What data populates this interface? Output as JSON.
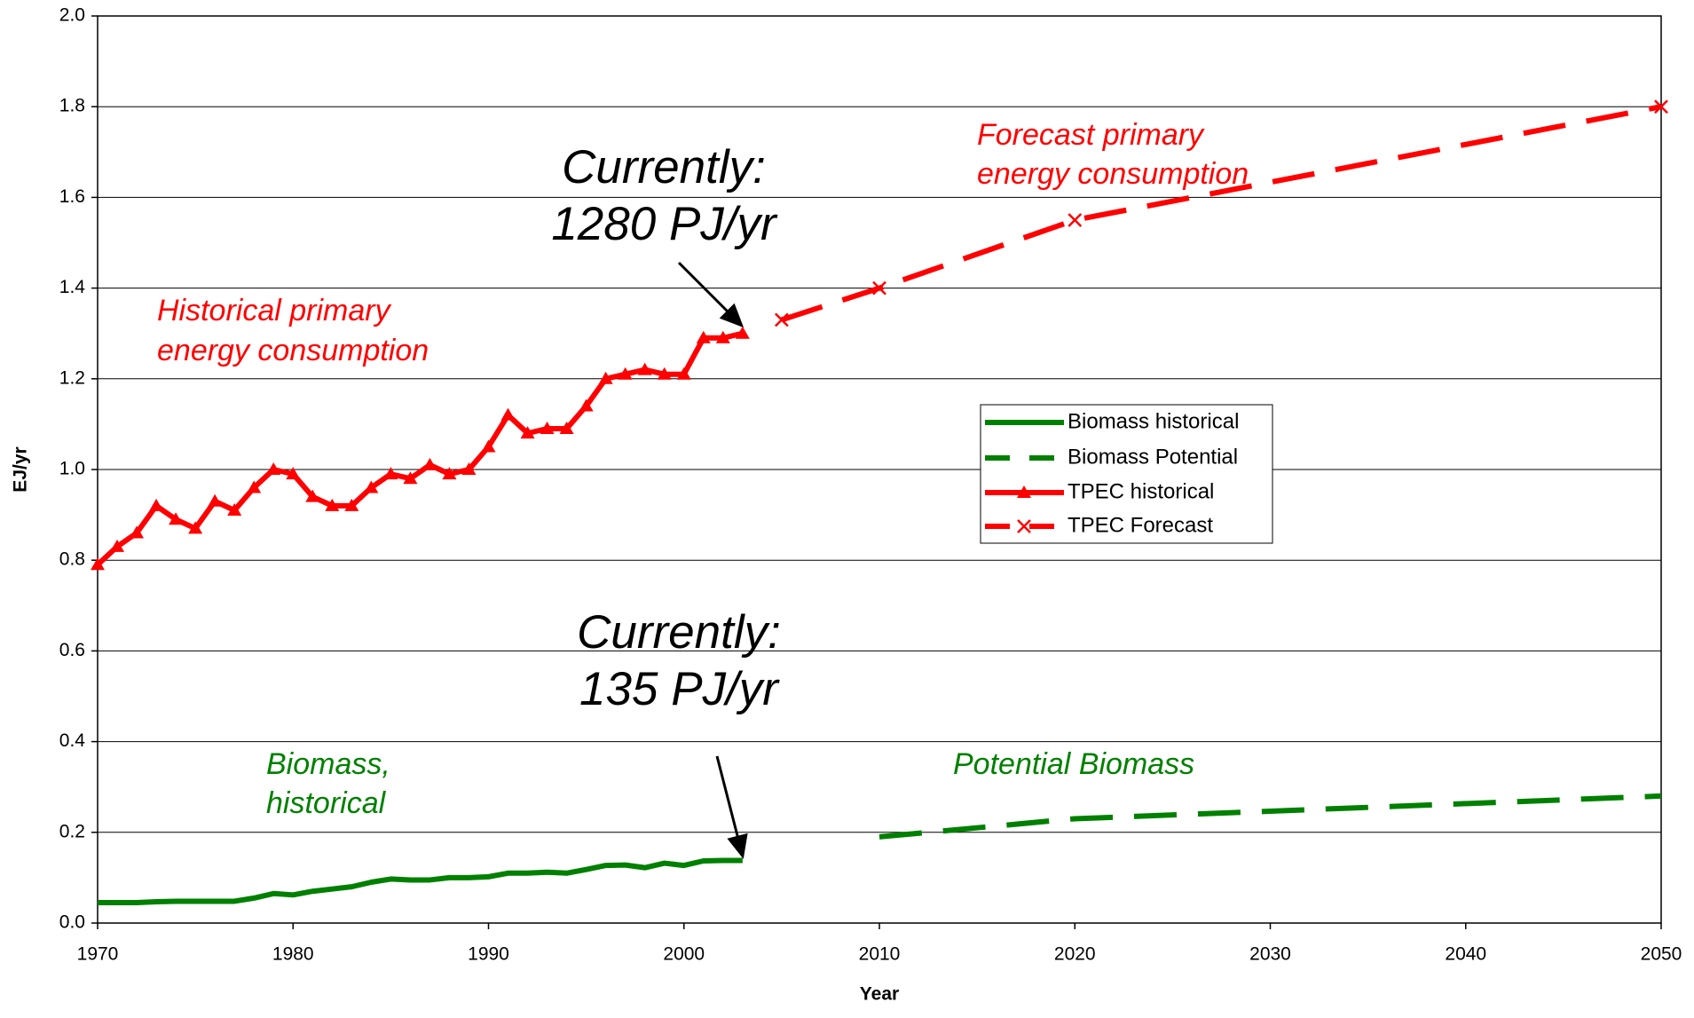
{
  "chart_data": {
    "type": "line",
    "xlabel": "Year",
    "ylabel": "EJ/yr",
    "xlim": [
      1970,
      2050
    ],
    "xticks": [
      1970,
      1980,
      1990,
      2000,
      2010,
      2020,
      2030,
      2040,
      2050
    ],
    "ylim": [
      0,
      2
    ],
    "yticks": [
      {
        "value": 0,
        "label": "0.0"
      },
      0.2,
      0.4,
      0.6,
      0.8,
      {
        "value": 1,
        "label": "1.0"
      },
      1.2,
      1.4,
      1.6,
      1.8,
      {
        "value": 2,
        "label": "2.0"
      }
    ],
    "grid": true,
    "series": [
      {
        "name": "Biomass historical",
        "color": "#008000",
        "dash": false,
        "marker": "none",
        "x": [
          1970,
          1971,
          1972,
          1973,
          1974,
          1975,
          1976,
          1977,
          1978,
          1979,
          1980,
          1981,
          1982,
          1983,
          1984,
          1985,
          1986,
          1987,
          1988,
          1989,
          1990,
          1991,
          1992,
          1993,
          1994,
          1995,
          1996,
          1997,
          1998,
          1999,
          2000,
          2001,
          2002,
          2003
        ],
        "values": [
          0.045,
          0.045,
          0.045,
          0.047,
          0.048,
          0.048,
          0.048,
          0.048,
          0.055,
          0.065,
          0.062,
          0.07,
          0.075,
          0.08,
          0.09,
          0.097,
          0.095,
          0.095,
          0.1,
          0.1,
          0.102,
          0.11,
          0.11,
          0.112,
          0.11,
          0.118,
          0.127,
          0.128,
          0.122,
          0.132,
          0.127,
          0.137,
          0.138,
          0.138
        ]
      },
      {
        "name": "Biomass Potential",
        "color": "#008000",
        "dash": true,
        "marker": "none",
        "x": [
          2010,
          2020,
          2050
        ],
        "values": [
          0.19,
          0.23,
          0.28
        ]
      },
      {
        "name": "TPEC historical",
        "color": "#ff0000",
        "dash": false,
        "marker": "triangle",
        "x": [
          1970,
          1971,
          1972,
          1973,
          1974,
          1975,
          1976,
          1977,
          1978,
          1979,
          1980,
          1981,
          1982,
          1983,
          1984,
          1985,
          1986,
          1987,
          1988,
          1989,
          1990,
          1991,
          1992,
          1993,
          1994,
          1995,
          1996,
          1997,
          1998,
          1999,
          2000,
          2001,
          2002,
          2003
        ],
        "values": [
          0.79,
          0.83,
          0.86,
          0.92,
          0.89,
          0.87,
          0.93,
          0.91,
          0.96,
          1.0,
          0.99,
          0.94,
          0.92,
          0.92,
          0.96,
          0.99,
          0.98,
          1.01,
          0.99,
          1.0,
          1.05,
          1.12,
          1.08,
          1.09,
          1.09,
          1.14,
          1.2,
          1.21,
          1.22,
          1.21,
          1.21,
          1.29,
          1.29,
          1.3
        ]
      },
      {
        "name": "TPEC Forecast",
        "color": "#ff0000",
        "dash": true,
        "marker": "x",
        "x": [
          2005,
          2010,
          2020,
          2050
        ],
        "values": [
          1.33,
          1.4,
          1.55,
          1.8
        ]
      }
    ],
    "annotations": [
      {
        "lines": [
          "Historical primary",
          "energy consumption"
        ],
        "color": "#ff0000"
      },
      {
        "lines": [
          "Forecast primary",
          "energy consumption"
        ],
        "color": "#ff0000"
      },
      {
        "lines": [
          "Currently:",
          "1280 PJ/yr"
        ],
        "color": "#000000"
      },
      {
        "lines": [
          "Currently:",
          "135 PJ/yr"
        ],
        "color": "#000000"
      },
      {
        "lines": [
          "Biomass,",
          "historical"
        ],
        "color": "#008000"
      },
      {
        "lines": [
          "Potential Biomass"
        ],
        "color": "#008000"
      }
    ]
  }
}
